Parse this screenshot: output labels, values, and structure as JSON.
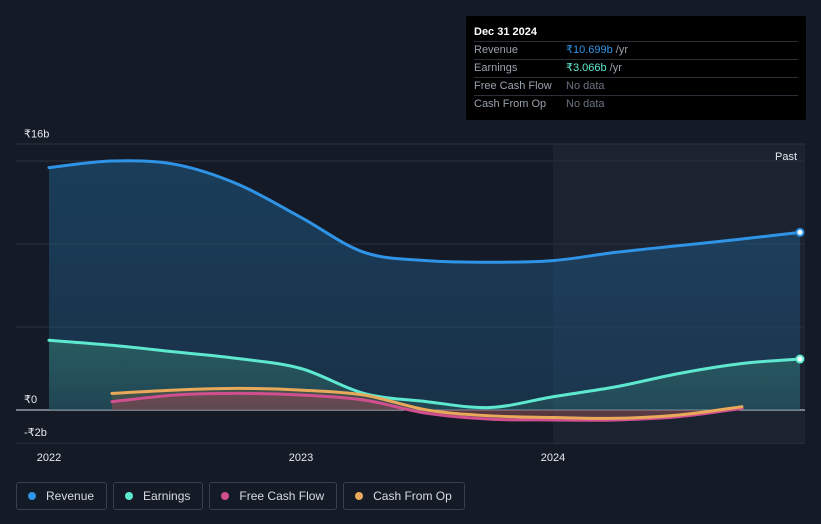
{
  "tooltip": {
    "date": "Dec 31 2024",
    "rows": [
      {
        "label": "Revenue",
        "value": "₹10.699b",
        "unit": "/yr",
        "color": "#2f93e6"
      },
      {
        "label": "Earnings",
        "value": "₹3.066b",
        "unit": "/yr",
        "color": "#5ee8d0"
      },
      {
        "label": "Free Cash Flow",
        "value": "No data",
        "unit": "",
        "color": "#6b7280"
      },
      {
        "label": "Cash From Op",
        "value": "No data",
        "unit": "",
        "color": "#6b7280"
      }
    ]
  },
  "legend": [
    {
      "label": "Revenue",
      "color": "#2f93e6"
    },
    {
      "label": "Earnings",
      "color": "#5ee8d0"
    },
    {
      "label": "Free Cash Flow",
      "color": "#d04f8e"
    },
    {
      "label": "Cash From Op",
      "color": "#e8a95a"
    }
  ],
  "past_label": "Past",
  "chart_data": {
    "type": "area",
    "ylim": [
      -2,
      16
    ],
    "xlim": [
      2021.9,
      2024.98
    ],
    "y_tick_labels": [
      {
        "value": 16,
        "label": "₹16b"
      },
      {
        "value": 0,
        "label": "₹0"
      },
      {
        "value": -2,
        "label": "-₹2b"
      }
    ],
    "x_tick_labels": [
      {
        "value": 2022.0,
        "label": "2022"
      },
      {
        "value": 2023.0,
        "label": "2023"
      },
      {
        "value": 2024.0,
        "label": "2024"
      }
    ],
    "gridlines": [
      15,
      10,
      5,
      0,
      -2
    ],
    "highlight_start": 2024.0,
    "series": [
      {
        "name": "Revenue",
        "color": "#2f93e6",
        "x": [
          2022.0,
          2022.25,
          2022.5,
          2022.75,
          2023.0,
          2023.25,
          2023.5,
          2023.75,
          2024.0,
          2024.25,
          2024.5,
          2024.75,
          2024.98
        ],
        "y": [
          14.6,
          15.0,
          14.8,
          13.6,
          11.6,
          9.5,
          9.0,
          8.9,
          9.0,
          9.5,
          9.9,
          10.3,
          10.7
        ]
      },
      {
        "name": "Earnings",
        "color": "#5ee8d0",
        "x": [
          2022.0,
          2022.25,
          2022.5,
          2022.75,
          2023.0,
          2023.25,
          2023.5,
          2023.75,
          2024.0,
          2024.25,
          2024.5,
          2024.75,
          2024.98
        ],
        "y": [
          4.2,
          3.9,
          3.5,
          3.1,
          2.5,
          1.0,
          0.5,
          0.15,
          0.8,
          1.4,
          2.2,
          2.8,
          3.07
        ]
      },
      {
        "name": "Free Cash Flow",
        "color": "#d04f8e",
        "x": [
          2022.25,
          2022.5,
          2022.75,
          2023.0,
          2023.25,
          2023.5,
          2023.75,
          2024.0,
          2024.25,
          2024.5,
          2024.75
        ],
        "y": [
          0.5,
          0.9,
          1.0,
          0.9,
          0.6,
          -0.2,
          -0.55,
          -0.6,
          -0.6,
          -0.4,
          0.1
        ]
      },
      {
        "name": "Cash From Op",
        "color": "#e8a95a",
        "x": [
          2022.25,
          2022.5,
          2022.75,
          2023.0,
          2023.25,
          2023.5,
          2023.75,
          2024.0,
          2024.25,
          2024.5,
          2024.75
        ],
        "y": [
          1.0,
          1.2,
          1.3,
          1.2,
          0.9,
          0.0,
          -0.35,
          -0.45,
          -0.5,
          -0.3,
          0.2
        ]
      }
    ]
  }
}
